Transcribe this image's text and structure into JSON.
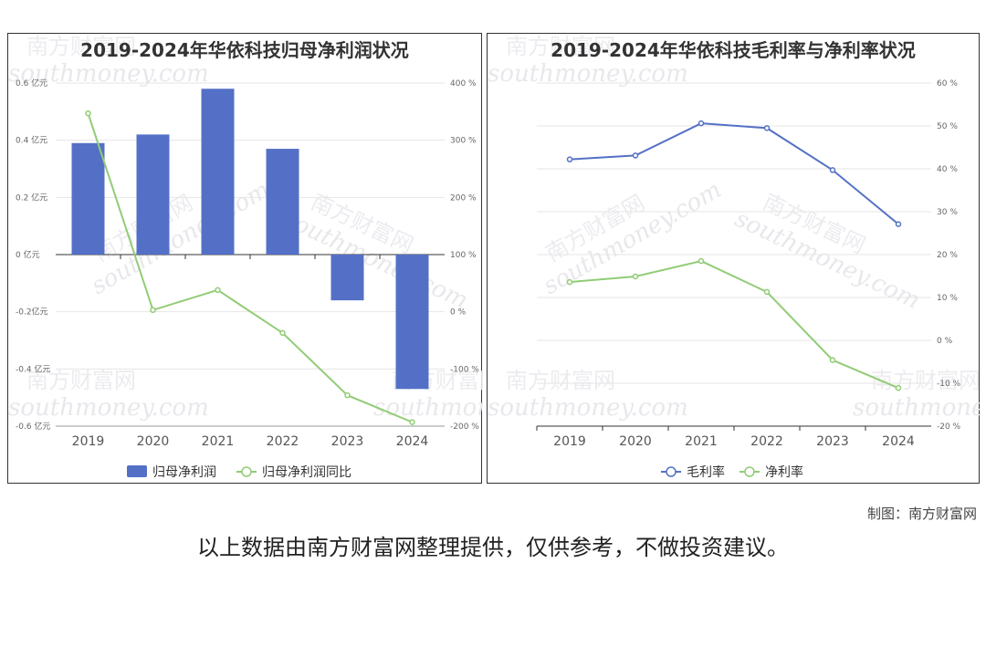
{
  "credit": "制图：南方财富网",
  "disclaimer": "以上数据由南方财富网整理提供，仅供参考，不做投资建议。",
  "watermark": {
    "cn": "南方财富网",
    "en": "southmoney.com"
  },
  "colors": {
    "bar": "#5470c6",
    "line_green": "#91cc75",
    "line_blue": "#5470c6"
  },
  "chart_data": [
    {
      "type": "bar",
      "title": "2019-2024年华依科技归母净利润状况",
      "categories": [
        "2019",
        "2020",
        "2021",
        "2022",
        "2023",
        "2024"
      ],
      "y_left_ticks": [
        "0.6 亿元",
        "0.4 亿元",
        "0.2 亿元",
        "0 亿元",
        "-0.2亿元",
        "-0.4 亿元",
        "-0.6 亿元"
      ],
      "y_right_ticks": [
        "400 %",
        "300 %",
        "200 %",
        "100 %",
        "0 %",
        "-100 %",
        "-200 %"
      ],
      "ylim_left": [
        -0.6,
        0.6
      ],
      "ylim_right": [
        -200,
        400
      ],
      "legend_position": "bottom",
      "series": [
        {
          "name": "归母净利润",
          "type": "bar",
          "axis": "left",
          "values": [
            0.39,
            0.42,
            0.58,
            0.37,
            -0.16,
            -0.47
          ]
        },
        {
          "name": "归母净利润同比",
          "type": "line",
          "axis": "right",
          "values": [
            347,
            3,
            38,
            -37,
            -146,
            -193
          ]
        }
      ]
    },
    {
      "type": "line",
      "title": "2019-2024年华依科技毛利率与净利率状况",
      "categories": [
        "2019",
        "2020",
        "2021",
        "2022",
        "2023",
        "2024"
      ],
      "y_right_ticks": [
        "60 %",
        "50 %",
        "40 %",
        "30 %",
        "20 %",
        "10 %",
        "0 %",
        "-10 %",
        "-20 %"
      ],
      "ylim": [
        -20,
        60
      ],
      "legend_position": "bottom",
      "series": [
        {
          "name": "毛利率",
          "values": [
            42.2,
            43.1,
            50.6,
            49.5,
            39.7,
            27.1
          ]
        },
        {
          "name": "净利率",
          "values": [
            13.6,
            14.9,
            18.5,
            11.3,
            -4.6,
            -11.1
          ]
        }
      ]
    }
  ]
}
